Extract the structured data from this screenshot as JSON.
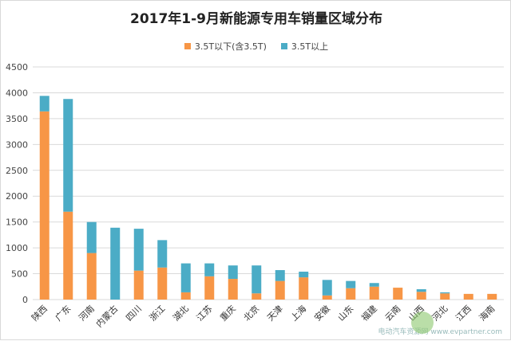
{
  "chart_data": {
    "type": "bar",
    "stacked": true,
    "title": "2017年1-9月新能源专用车销量区域分布",
    "categories": [
      "陕西",
      "广东",
      "河南",
      "内蒙古",
      "四川",
      "浙江",
      "湖北",
      "江苏",
      "重庆",
      "北京",
      "天津",
      "上海",
      "安徽",
      "山东",
      "福建",
      "云南",
      "山西",
      "河北",
      "江西",
      "海南"
    ],
    "series": [
      {
        "name": "3.5T以下(含3.5T)",
        "color": "#f79646",
        "values": [
          3640,
          1700,
          900,
          0,
          560,
          620,
          140,
          450,
          400,
          120,
          360,
          430,
          80,
          220,
          250,
          230,
          150,
          120,
          110,
          110
        ]
      },
      {
        "name": "3.5T以上",
        "color": "#4bacc6",
        "values": [
          300,
          2180,
          600,
          1390,
          810,
          530,
          560,
          250,
          260,
          540,
          210,
          110,
          300,
          140,
          70,
          0,
          50,
          20,
          0,
          0
        ]
      }
    ],
    "ylim": [
      0,
      4500
    ],
    "yticks": [
      0,
      500,
      1000,
      1500,
      2000,
      2500,
      3000,
      3500,
      4000,
      4500
    ],
    "grid": true,
    "legend_position": "top",
    "watermark": "电动汽车资源网 www.evpartner.com"
  }
}
